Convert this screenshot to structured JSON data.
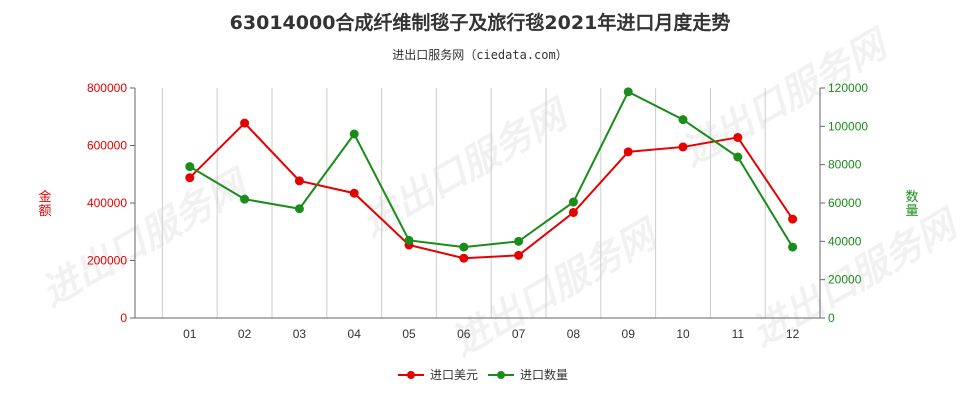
{
  "title": "63014000合成纤维制毯子及旅行毯2021年进口月度走势",
  "subtitle": "进出口服务网（ciedata.com）",
  "watermark": "进出口服务网",
  "colors": {
    "left_axis": "#e60000",
    "right_axis": "#1a8c1a",
    "grid": "#cccccc"
  },
  "chart_data": {
    "type": "line",
    "categories": [
      "01",
      "02",
      "03",
      "04",
      "05",
      "06",
      "07",
      "08",
      "09",
      "10",
      "11",
      "12"
    ],
    "y_left": {
      "label": "金额",
      "range": [
        0,
        800000
      ],
      "ticks": [
        "0",
        "200000",
        "400000",
        "600000",
        "800000"
      ]
    },
    "y_right": {
      "label": "数量",
      "range": [
        0,
        120000
      ],
      "ticks": [
        "0",
        "20000",
        "40000",
        "60000",
        "80000",
        "100000",
        "120000"
      ]
    },
    "grid": "vertical",
    "legend_position": "bottom",
    "series": [
      {
        "name": "进口美元",
        "axis": "left",
        "color": "#e60000",
        "values": [
          488000,
          678000,
          477000,
          434000,
          254000,
          208000,
          218000,
          367000,
          578000,
          595000,
          628000,
          344000
        ]
      },
      {
        "name": "进口数量",
        "axis": "right",
        "color": "#1a8c1a",
        "values": [
          79000,
          62000,
          57000,
          96000,
          40500,
          37000,
          40000,
          60500,
          118000,
          103500,
          84000,
          37000
        ]
      }
    ]
  }
}
